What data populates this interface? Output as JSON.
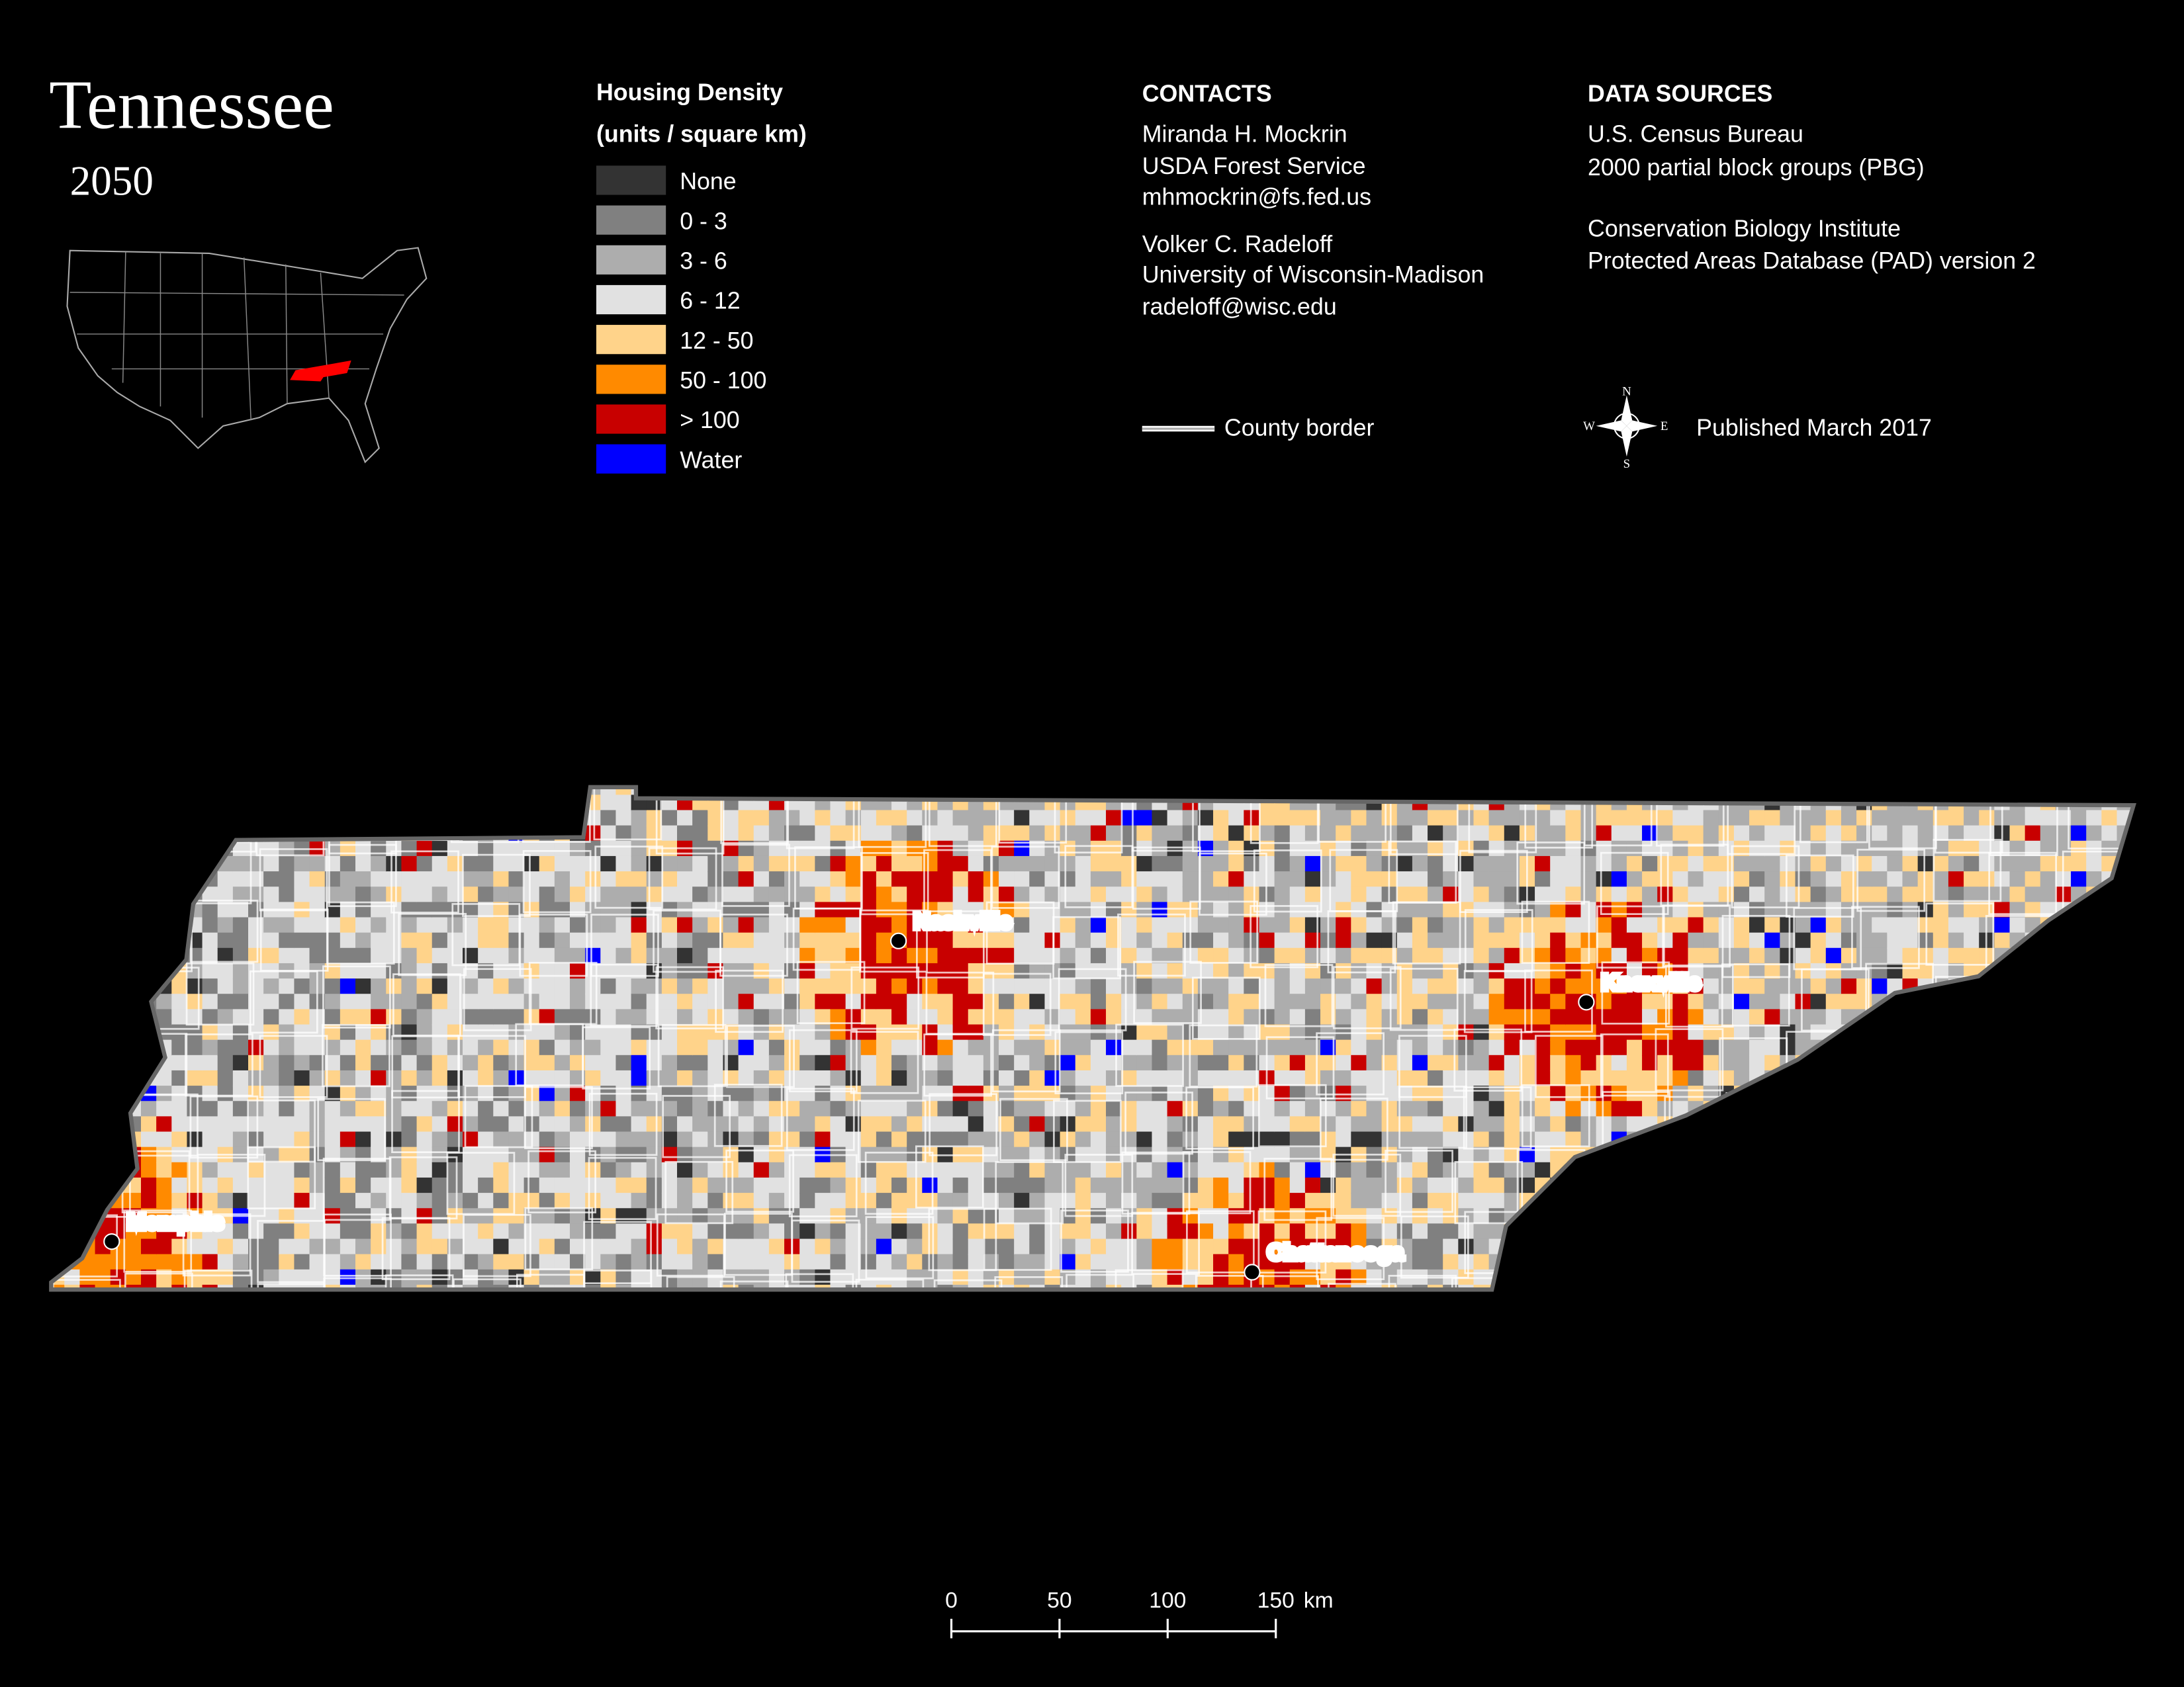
{
  "header": {
    "title": "Tennessee",
    "subtitle": "2050"
  },
  "legend": {
    "title": [
      "Housing Density",
      "(units / square km)"
    ],
    "items": [
      {
        "label": "None",
        "color": "#333333"
      },
      {
        "label": "0 - 3",
        "color": "#808080"
      },
      {
        "label": "3 - 6",
        "color": "#adadad"
      },
      {
        "label": "6 - 12",
        "color": "#e1e1e1"
      },
      {
        "label": "12 - 50",
        "color": "#ffd38a"
      },
      {
        "label": "50 - 100",
        "color": "#ff8a00"
      },
      {
        "label": "> 100",
        "color": "#c80000"
      },
      {
        "label": "Water",
        "color": "#0000ff"
      }
    ]
  },
  "contacts": {
    "heading": "CONTACTS",
    "lines": [
      "Miranda H. Mockrin",
      "USDA Forest Service",
      "mhmockrin@fs.fed.us",
      "Volker C. Radeloff",
      "University of Wisconsin-Madison",
      "radeloff@wisc.edu"
    ]
  },
  "data_sources": {
    "heading": "DATA SOURCES",
    "lines": [
      "U.S. Census Bureau",
      "2000 partial block groups (PBG)",
      "Conservation Biology Institute",
      "Protected Areas Database (PAD) version 2"
    ]
  },
  "county_border": "County border",
  "compass": [
    "N",
    "E",
    "S",
    "W"
  ],
  "published": "Published March 2017",
  "cities": [
    "Memphis",
    "Nashville",
    "Knoxville",
    "Chattanooga"
  ],
  "scale_bar": {
    "ticks": [
      0,
      50,
      100,
      150
    ],
    "unit": "km"
  }
}
